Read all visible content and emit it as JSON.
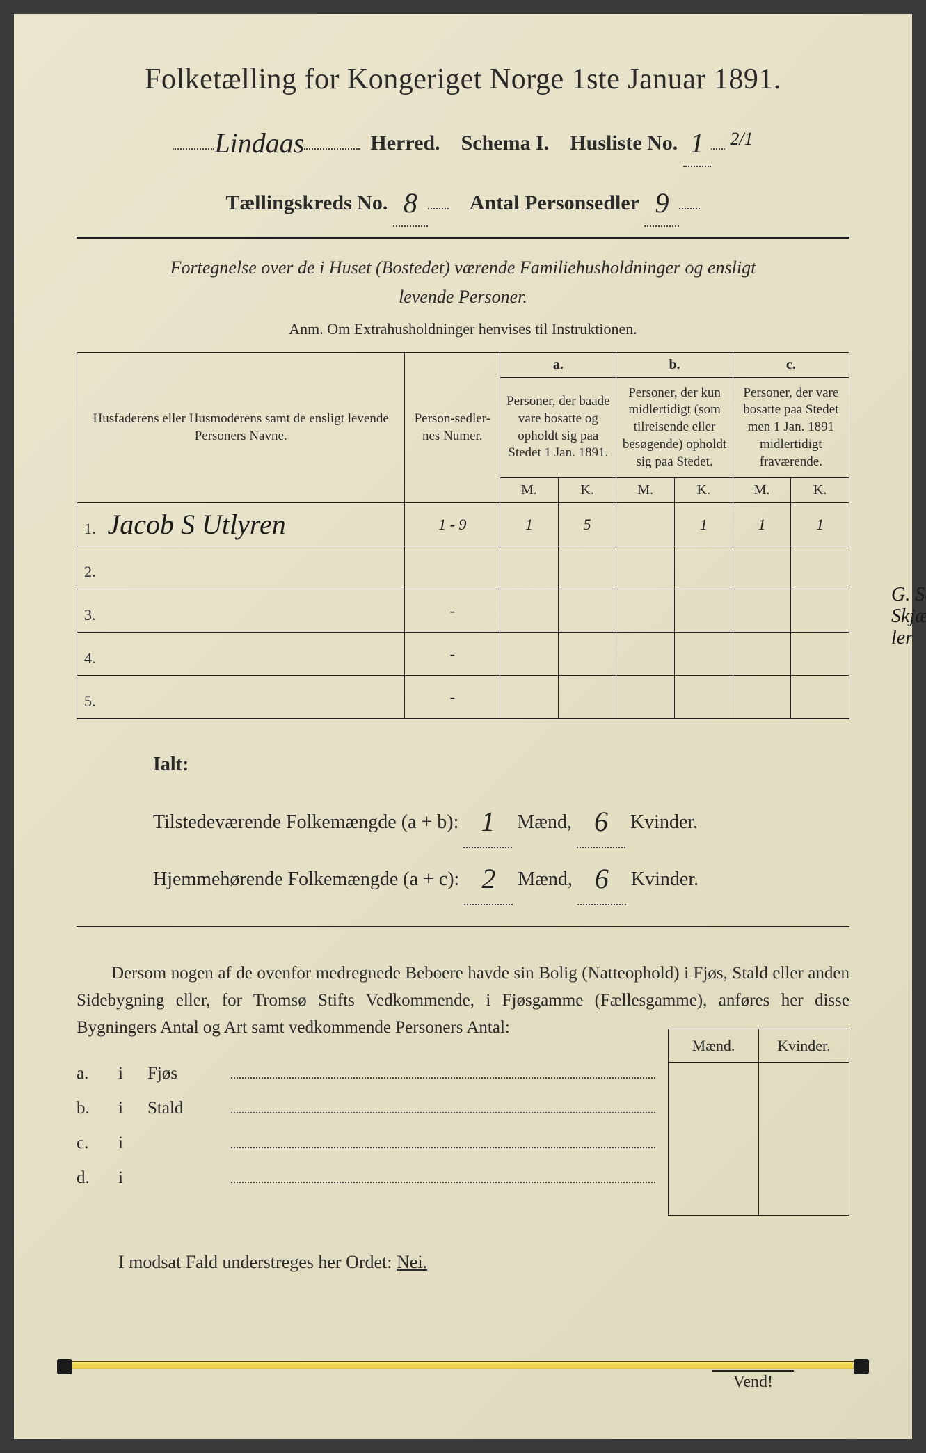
{
  "title": "Folketælling for Kongeriget Norge 1ste Januar 1891.",
  "header": {
    "herred_value": "Lindaas",
    "herred_label": "Herred.",
    "schema_label": "Schema I.",
    "husliste_label": "Husliste No.",
    "husliste_value": "1",
    "husliste_suffix": "2/1",
    "kreds_label": "Tællingskreds No.",
    "kreds_value": "8",
    "personsedler_label": "Antal Personsedler",
    "personsedler_value": "9"
  },
  "instruction_line1": "Fortegnelse over de i Huset (Bostedet) værende Familiehusholdninger og ensligt",
  "instruction_line2": "levende Personer.",
  "anm": "Anm.   Om Extrahusholdninger henvises til Instruktionen.",
  "table": {
    "col_names": "Husfaderens eller Husmoderens samt de ensligt levende Personers Navne.",
    "col_numer": "Person-sedler-nes Numer.",
    "col_a_head": "a.",
    "col_a": "Personer, der baade vare bosatte og opholdt sig paa Stedet 1 Jan. 1891.",
    "col_b_head": "b.",
    "col_b": "Personer, der kun midlertidigt (som tilreisende eller besøgende) opholdt sig paa Stedet.",
    "col_c_head": "c.",
    "col_c": "Personer, der vare bosatte paa Stedet men 1 Jan. 1891 midlertidigt fraværende.",
    "m": "M.",
    "k": "K.",
    "rows": [
      {
        "num": "1.",
        "name": "Jacob S Utlyren",
        "numer": "1 - 9",
        "am": "1",
        "ak": "5",
        "bm": "",
        "bk": "1",
        "cm": "1",
        "ck": "1"
      },
      {
        "num": "2.",
        "name": "",
        "numer": "",
        "am": "",
        "ak": "",
        "bm": "",
        "bk": "",
        "cm": "",
        "ck": ""
      },
      {
        "num": "3.",
        "name": "",
        "numer": "-",
        "am": "",
        "ak": "",
        "bm": "",
        "bk": "",
        "cm": "",
        "ck": ""
      },
      {
        "num": "4.",
        "name": "",
        "numer": "-",
        "am": "",
        "ak": "",
        "bm": "",
        "bk": "",
        "cm": "",
        "ck": ""
      },
      {
        "num": "5.",
        "name": "",
        "numer": "-",
        "am": "",
        "ak": "",
        "bm": "",
        "bk": "",
        "cm": "",
        "ck": ""
      }
    ],
    "margin_note": "G. Selven Skjælhan ler"
  },
  "totals": {
    "ialt": "Ialt:",
    "line1_label": "Tilstedeværende  Folkemængde (a + b):",
    "line1_m": "1",
    "line1_k": "6",
    "line2_label": "Hjemmehørende   Folkemængde (a + c):",
    "line2_m": "2",
    "line2_k": "6",
    "maend": "Mænd,",
    "kvinder": "Kvinder."
  },
  "paragraph": "Dersom nogen af de ovenfor medregnede Beboere havde sin Bolig (Natteophold) i Fjøs, Stald eller anden Sidebygning eller, for Tromsø Stifts Vedkommende, i Fjøsgamme (Fællesgamme), anføres her disse Bygningers Antal og Art samt vedkommende Personers Antal:",
  "sidebuild": {
    "maend": "Mænd.",
    "kvinder": "Kvinder.",
    "rows": [
      {
        "tag": "a.",
        "i": "i",
        "kind": "Fjøs"
      },
      {
        "tag": "b.",
        "i": "i",
        "kind": "Stald"
      },
      {
        "tag": "c.",
        "i": "i",
        "kind": ""
      },
      {
        "tag": "d.",
        "i": "i",
        "kind": ""
      }
    ]
  },
  "nei_line": "I modsat Fald understreges her Ordet:",
  "nei_word": "Nei.",
  "vend": "Vend!",
  "colors": {
    "paper": "#e8e2ca",
    "ink": "#222222",
    "handwriting": "#1a1a1a",
    "yellow_band": "#f0d850"
  }
}
